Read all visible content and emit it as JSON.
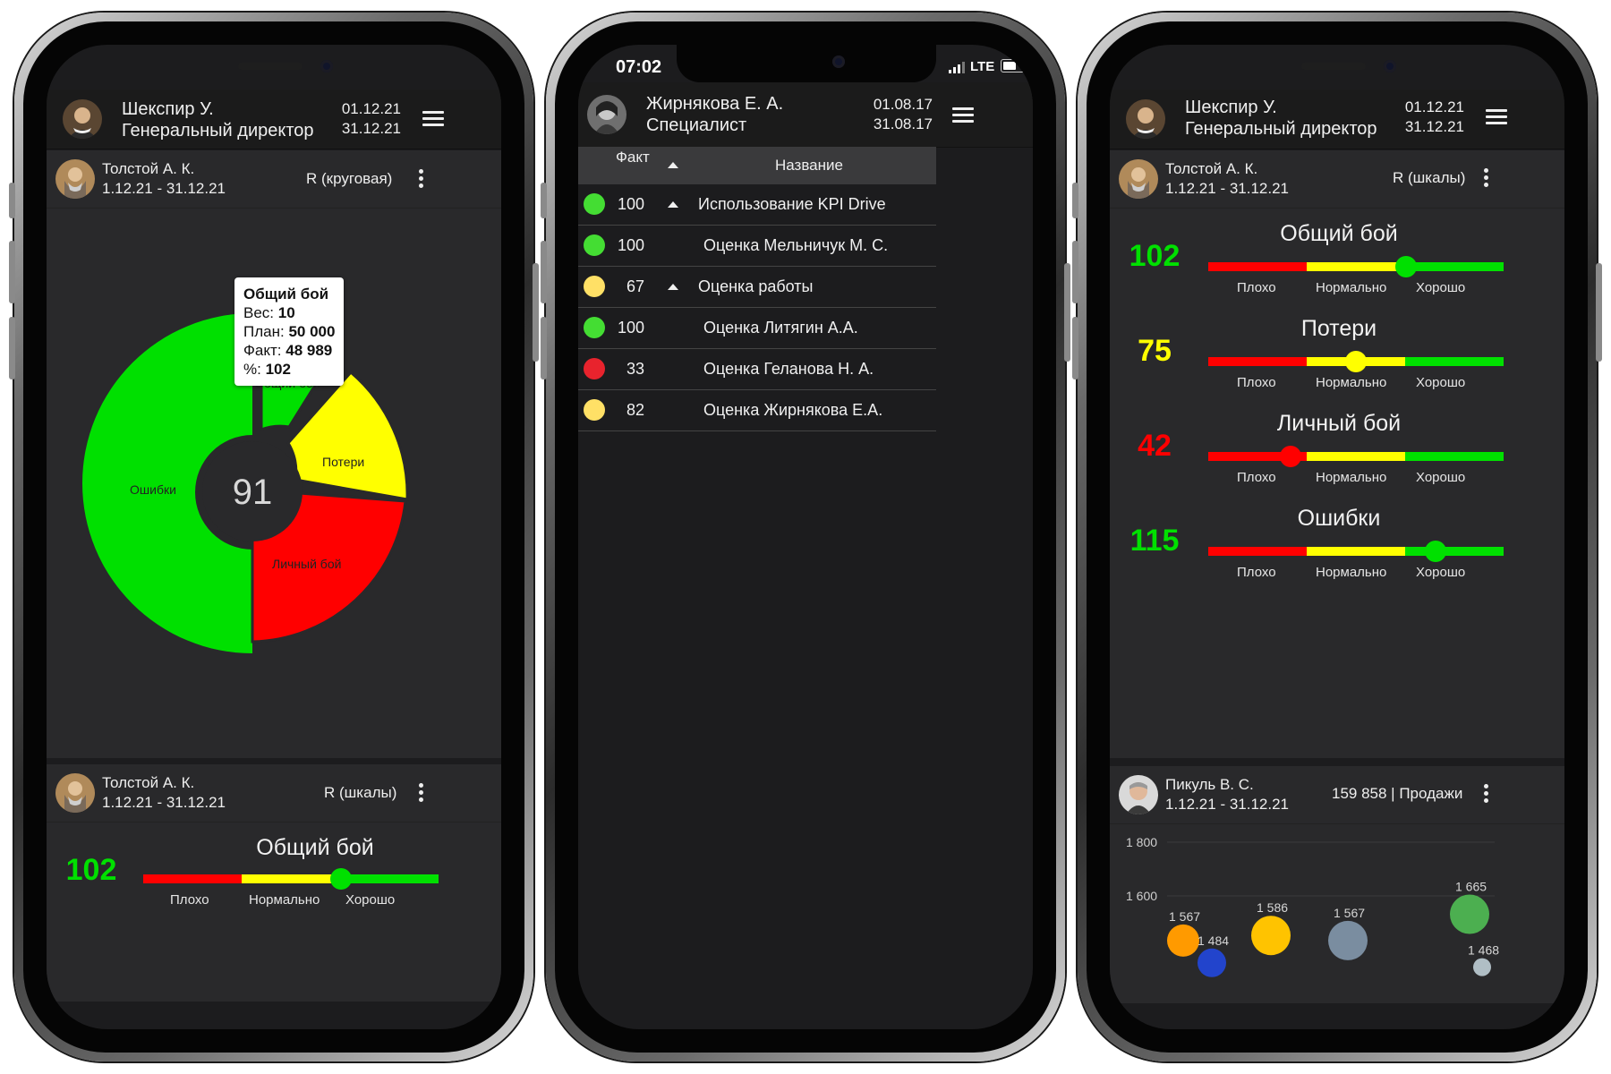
{
  "colors": {
    "green": "#00e000",
    "yellow": "#ffff00",
    "red": "#ff0000",
    "dark": "#29292b"
  },
  "phone1": {
    "header": {
      "name": "Шекспир У.",
      "role": "Генеральный директор",
      "date_from": "01.12.21",
      "date_to": "31.12.21"
    },
    "widget1": {
      "name": "Толстой А. К.",
      "period": "1.12.21 - 31.12.21",
      "type": "R (круговая)"
    },
    "donut": {
      "center": "91",
      "slices": [
        {
          "label": "Общий бой",
          "value": 10,
          "color": "#00e000"
        },
        {
          "label": "Потери",
          "value": 15,
          "color": "#ffff00"
        },
        {
          "label": "Личный бой",
          "value": 25,
          "color": "#ff0000"
        },
        {
          "label": "Ошибки",
          "value": 50,
          "color": "#00e000"
        }
      ]
    },
    "tooltip": {
      "title": "Общий бой",
      "weight_label": "Вес:",
      "weight": "10",
      "plan_label": "План:",
      "plan": "50 000",
      "fact_label": "Факт:",
      "fact": "48 989",
      "pct_label": "%:",
      "pct": "102"
    },
    "widget2": {
      "name": "Толстой А. К.",
      "period": "1.12.21 - 31.12.21",
      "type": "R (шкалы)"
    },
    "gauge": {
      "title": "Общий бой",
      "value": "102",
      "value_color": "#00e000",
      "knob_color": "#00e000",
      "position": 0.67,
      "labels": [
        "Плохо",
        "Нормально",
        "Хорошо"
      ]
    }
  },
  "phone2": {
    "status": {
      "time": "07:02",
      "network": "LTE"
    },
    "header": {
      "name": "Жирнякова Е. А.",
      "role": "Специалист",
      "date_from": "01.08.17",
      "date_to": "31.08.17"
    },
    "table": {
      "col_fact": "Факт",
      "col_name": "Название",
      "rows": [
        {
          "fact": "100",
          "name": "Использование KPI Drive",
          "color": "#44dd33",
          "expand": true
        },
        {
          "fact": "100",
          "name": "Оценка Мельничук М. С.",
          "color": "#44dd33",
          "expand": false
        },
        {
          "fact": "67",
          "name": "Оценка работы",
          "color": "#ffe066",
          "expand": true
        },
        {
          "fact": "100",
          "name": "Оценка Литягин А.А.",
          "color": "#44dd33",
          "expand": false
        },
        {
          "fact": "33",
          "name": "Оценка Геланова Н. А.",
          "color": "#e8232d",
          "expand": false
        },
        {
          "fact": "82",
          "name": "Оценка Жирнякова Е.А.",
          "color": "#ffe066",
          "expand": false
        }
      ]
    }
  },
  "phone3": {
    "header": {
      "name": "Шекспир У.",
      "role": "Генеральный директор",
      "date_from": "01.12.21",
      "date_to": "31.12.21"
    },
    "widget1": {
      "name": "Толстой А. К.",
      "period": "1.12.21 - 31.12.21",
      "type": "R (шкалы)"
    },
    "gauges": [
      {
        "title": "Общий бой",
        "value": "102",
        "value_color": "#00e000",
        "knob_color": "#00e000",
        "position": 0.67
      },
      {
        "title": "Потери",
        "value": "75",
        "value_color": "#ffff00",
        "knob_color": "#ffff00",
        "position": 0.5
      },
      {
        "title": "Личный бой",
        "value": "42",
        "value_color": "#ff0000",
        "knob_color": "#ff0000",
        "position": 0.28
      },
      {
        "title": "Ошибки",
        "value": "115",
        "value_color": "#00e000",
        "knob_color": "#00e000",
        "position": 0.77
      }
    ],
    "gauge_labels": [
      "Плохо",
      "Нормально",
      "Хорошо"
    ],
    "widget2": {
      "name": "Пикуль В. С.",
      "period": "1.12.21 - 31.12.21",
      "summary": "159 858 | Продажи"
    },
    "chart_data": {
      "type": "scatter",
      "title": "",
      "y_ticks": [
        "1 800",
        "1 600"
      ],
      "ylim": [
        1450,
        1800
      ],
      "points": [
        {
          "label": "1 567",
          "value": 1567,
          "color": "#ff9a00"
        },
        {
          "label": "1 484",
          "value": 1484,
          "color": "#2244cc"
        },
        {
          "label": "1 586",
          "value": 1586,
          "color": "#ffc300"
        },
        {
          "label": "1 567",
          "value": 1567,
          "color": "#7a8da0"
        },
        {
          "label": "1 665",
          "value": 1665,
          "color": "#4caf50"
        },
        {
          "label": "1 468",
          "value": 1468,
          "color": "#b0bec5"
        }
      ]
    }
  }
}
